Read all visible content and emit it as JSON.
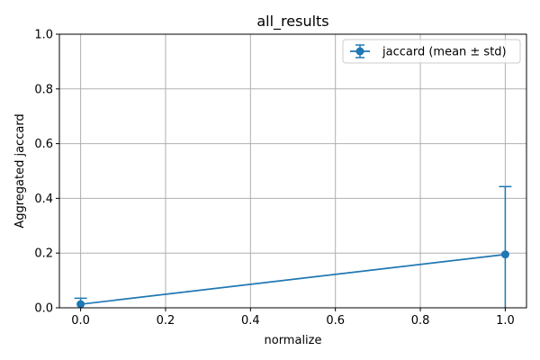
{
  "chart_data": {
    "type": "line",
    "title": "all_results",
    "xlabel": "normalize",
    "ylabel": "Aggregated jaccard",
    "xlim": [
      -0.05,
      1.05
    ],
    "ylim": [
      0.0,
      1.0
    ],
    "x_ticks": [
      0.0,
      0.2,
      0.4,
      0.6,
      0.8,
      1.0
    ],
    "x_tick_labels": [
      "0.0",
      "0.2",
      "0.4",
      "0.6",
      "0.8",
      "1.0"
    ],
    "y_ticks": [
      0.0,
      0.2,
      0.4,
      0.6,
      0.8,
      1.0
    ],
    "y_tick_labels": [
      "0.0",
      "0.2",
      "0.4",
      "0.6",
      "0.8",
      "1.0"
    ],
    "grid": true,
    "legend_position": "top-right",
    "series": [
      {
        "name": "jaccard (mean ± std)",
        "color": "#1f77b4",
        "marker": "circle",
        "error_bars": true,
        "x": [
          0.0,
          1.0
        ],
        "y": [
          0.013,
          0.195
        ],
        "yerr": [
          0.022,
          0.248
        ]
      }
    ]
  }
}
